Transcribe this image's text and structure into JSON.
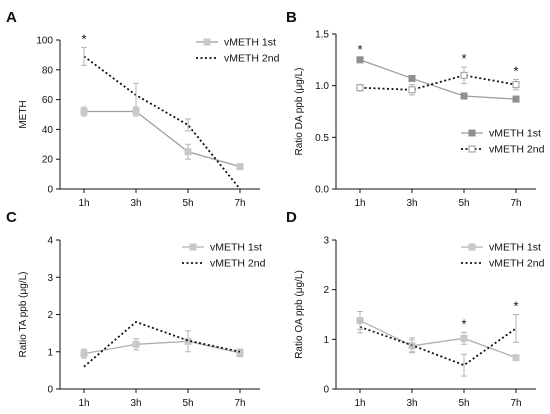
{
  "chart_data": [
    {
      "type": "line",
      "panel_label": "A",
      "categories": [
        "1h",
        "3h",
        "5h",
        "7h"
      ],
      "ylabel": "METH",
      "ylim": [
        0,
        100
      ],
      "yticks": [
        0,
        20,
        40,
        60,
        80,
        100
      ],
      "legend_position": "top-right",
      "series": [
        {
          "name": "vMETH 1st",
          "style": "solid",
          "values": [
            52,
            52,
            25,
            15
          ],
          "err": [
            3,
            3,
            5,
            1
          ],
          "color": "#9e9e9e"
        },
        {
          "name": "vMETH 2nd",
          "style": "dotted",
          "values": [
            89,
            63,
            43,
            0
          ],
          "err": [
            6,
            8,
            4,
            0
          ],
          "color": "#111111"
        }
      ],
      "annotations": [
        {
          "text": "*",
          "category": "1h"
        }
      ]
    },
    {
      "type": "line",
      "panel_label": "B",
      "categories": [
        "1h",
        "3h",
        "5h",
        "7h"
      ],
      "ylabel": "Ratio DA ppb (μg/L)",
      "ylim": [
        0,
        1.5
      ],
      "yticks": [
        0.0,
        0.5,
        1.0,
        1.5
      ],
      "yticklabels": [
        "0.0",
        "0.5",
        "1.0",
        "1.5"
      ],
      "legend_position": "bottom-right",
      "series": [
        {
          "name": "vMETH 1st",
          "style": "solid",
          "marker": "square-filled",
          "values": [
            1.25,
            1.07,
            0.9,
            0.87
          ],
          "err": [
            0.02,
            0.02,
            0.02,
            0.02
          ],
          "color": "#9e9e9e"
        },
        {
          "name": "vMETH 2nd",
          "style": "dotted",
          "marker": "square-open",
          "values": [
            0.98,
            0.96,
            1.1,
            1.01
          ],
          "err": [
            0.03,
            0.05,
            0.08,
            0.05
          ],
          "color": "#111111"
        }
      ],
      "annotations": [
        {
          "text": "*",
          "category": "1h"
        },
        {
          "text": "*",
          "category": "5h"
        },
        {
          "text": "*",
          "category": "7h"
        }
      ]
    },
    {
      "type": "line",
      "panel_label": "C",
      "categories": [
        "1h",
        "3h",
        "5h",
        "7h"
      ],
      "ylabel": "Ratio TA ppb (μg/L)",
      "ylim": [
        0,
        4
      ],
      "yticks": [
        0,
        1,
        2,
        3,
        4
      ],
      "legend_position": "top-right",
      "series": [
        {
          "name": "vMETH 1st",
          "style": "solid",
          "values": [
            0.95,
            1.2,
            1.28,
            0.97
          ],
          "err": [
            0.12,
            0.15,
            0.28,
            0.1
          ],
          "color": "#b0b0b0"
        },
        {
          "name": "vMETH 2nd",
          "style": "dotted",
          "values": [
            0.6,
            1.8,
            1.3,
            1.0
          ],
          "err": [
            0,
            0,
            0,
            0
          ],
          "color": "#111111"
        }
      ],
      "annotations": []
    },
    {
      "type": "line",
      "panel_label": "D",
      "categories": [
        "1h",
        "3h",
        "5h",
        "7h"
      ],
      "ylabel": "Ratio OA ppb (μg/L)",
      "ylim": [
        0,
        3
      ],
      "yticks": [
        0,
        1,
        2,
        3
      ],
      "legend_position": "top-right",
      "series": [
        {
          "name": "vMETH 1st",
          "style": "solid",
          "values": [
            1.38,
            0.87,
            1.02,
            0.63
          ],
          "err": [
            0.18,
            0.12,
            0.12,
            0.05
          ],
          "color": "#b0b0b0"
        },
        {
          "name": "vMETH 2nd",
          "style": "dotted",
          "values": [
            1.25,
            0.88,
            0.48,
            1.22
          ],
          "err": [
            0.12,
            0.15,
            0.22,
            0.28
          ],
          "color": "#111111"
        }
      ],
      "annotations": [
        {
          "text": "*",
          "category": "5h"
        },
        {
          "text": "*",
          "category": "7h"
        }
      ]
    }
  ]
}
